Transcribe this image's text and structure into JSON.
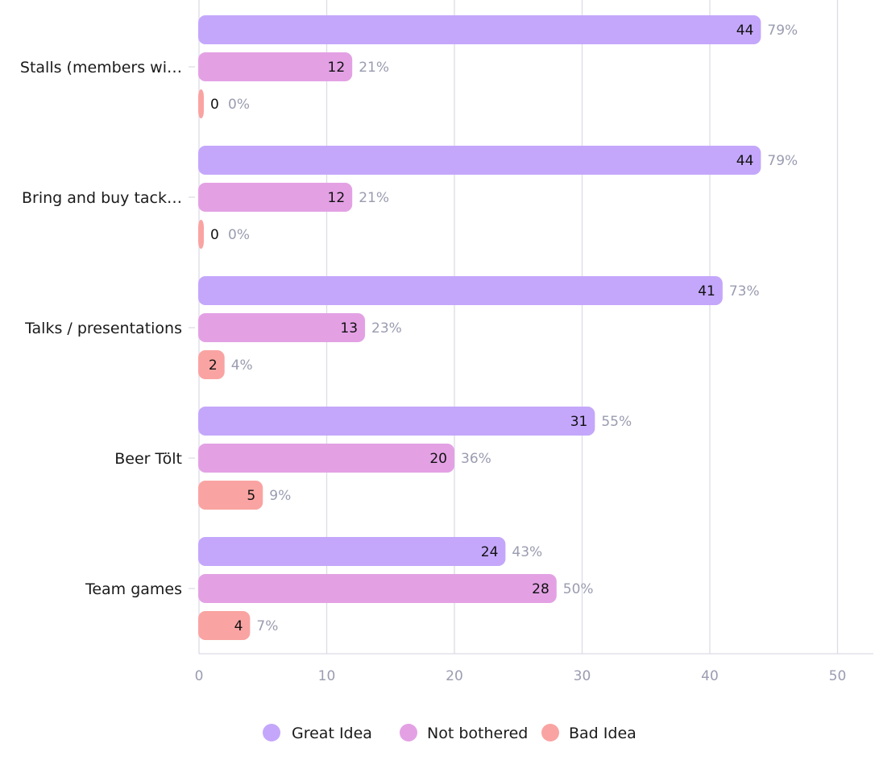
{
  "chart_data": {
    "type": "bar",
    "orientation": "horizontal",
    "categories": [
      "Stalls (members wi…",
      "Bring and buy tack…",
      "Talks / presentations",
      "Beer Tölt",
      "Team games"
    ],
    "series": [
      {
        "name": "Great Idea",
        "color": "#c4a7fb",
        "values": [
          44,
          44,
          41,
          31,
          24
        ],
        "percents": [
          "79%",
          "79%",
          "73%",
          "55%",
          "43%"
        ]
      },
      {
        "name": "Not bothered",
        "color": "#e3a1e4",
        "values": [
          12,
          12,
          13,
          20,
          28
        ],
        "percents": [
          "21%",
          "21%",
          "23%",
          "36%",
          "50%"
        ]
      },
      {
        "name": "Bad Idea",
        "color": "#f9a4a2",
        "values": [
          0,
          0,
          2,
          5,
          4
        ],
        "percents": [
          "0%",
          "0%",
          "4%",
          "9%",
          "7%"
        ]
      }
    ],
    "xticks": [
      0,
      10,
      20,
      30,
      40,
      50
    ],
    "xlim": [
      0,
      53
    ],
    "grid": true,
    "legend": "bottom-center"
  }
}
